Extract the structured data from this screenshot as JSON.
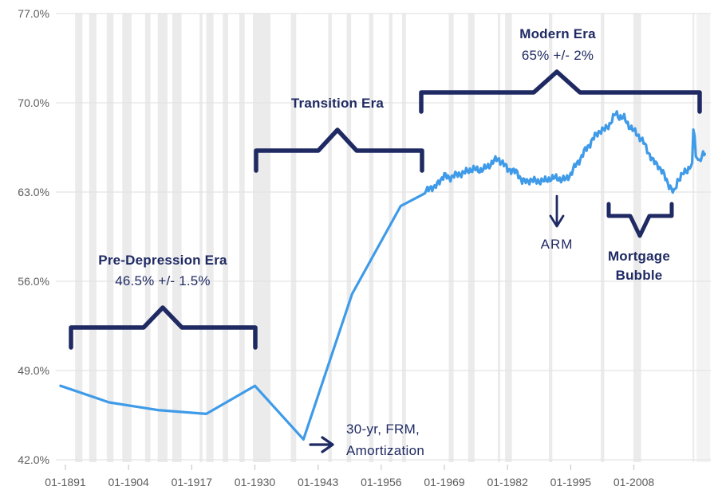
{
  "chart_data": {
    "type": "line",
    "x_axis": {
      "tick_labels": [
        "01-1891",
        "01-1904",
        "01-1917",
        "01-1930",
        "01-1943",
        "01-1956",
        "01-1969",
        "01-1982",
        "01-1995",
        "01-2008"
      ],
      "tick_years": [
        1891,
        1904,
        1917,
        1930,
        1943,
        1956,
        1969,
        1982,
        1995,
        2008
      ],
      "range_years": [
        1889,
        2023.7
      ]
    },
    "y_axis": {
      "tick_labels": [
        "42.0%",
        "49.0%",
        "56.0%",
        "63.0%",
        "70.0%",
        "77.0%"
      ],
      "tick_values": [
        42,
        49,
        56,
        63,
        70,
        77
      ],
      "range": [
        42,
        77
      ]
    },
    "series": [
      {
        "name": "homeownership-rate-census-era",
        "style": "smooth",
        "points": [
          [
            1890,
            47.8
          ],
          [
            1900,
            46.5
          ],
          [
            1910,
            45.9
          ],
          [
            1920,
            45.6
          ],
          [
            1930,
            47.8
          ],
          [
            1940,
            43.6
          ],
          [
            1950,
            55.0
          ],
          [
            1960,
            61.9
          ],
          [
            1965,
            62.9
          ]
        ]
      },
      {
        "name": "homeownership-rate-quarterly",
        "style": "noisy",
        "noise_amplitude": 0.22,
        "points": [
          [
            1965,
            62.9
          ],
          [
            1966,
            63.4
          ],
          [
            1967,
            63.3
          ],
          [
            1968,
            63.9
          ],
          [
            1969,
            64.3
          ],
          [
            1970,
            64.1
          ],
          [
            1971,
            64.3
          ],
          [
            1972,
            64.4
          ],
          [
            1973,
            64.5
          ],
          [
            1974,
            64.7
          ],
          [
            1975,
            64.8
          ],
          [
            1976,
            64.7
          ],
          [
            1977,
            64.8
          ],
          [
            1978,
            65.0
          ],
          [
            1979,
            65.4
          ],
          [
            1980,
            65.6
          ],
          [
            1981,
            65.3
          ],
          [
            1982,
            64.8
          ],
          [
            1983,
            64.7
          ],
          [
            1984,
            64.5
          ],
          [
            1985,
            63.9
          ],
          [
            1986,
            63.8
          ],
          [
            1987,
            64.0
          ],
          [
            1988,
            63.8
          ],
          [
            1989,
            63.9
          ],
          [
            1990,
            63.9
          ],
          [
            1991,
            64.1
          ],
          [
            1992,
            64.1
          ],
          [
            1993,
            64.0
          ],
          [
            1994,
            64.0
          ],
          [
            1995,
            64.4
          ],
          [
            1996,
            65.1
          ],
          [
            1997,
            65.6
          ],
          [
            1998,
            66.3
          ],
          [
            1999,
            66.8
          ],
          [
            2000,
            67.4
          ],
          [
            2001,
            67.8
          ],
          [
            2002,
            67.9
          ],
          [
            2003,
            68.3
          ],
          [
            2004.3,
            69.2
          ],
          [
            2005,
            68.9
          ],
          [
            2006,
            68.8
          ],
          [
            2007,
            68.2
          ],
          [
            2008,
            67.8
          ],
          [
            2009,
            67.4
          ],
          [
            2010,
            66.9
          ],
          [
            2011,
            66.1
          ],
          [
            2012,
            65.4
          ],
          [
            2013,
            65.1
          ],
          [
            2014,
            64.5
          ],
          [
            2015,
            63.7
          ],
          [
            2016.3,
            62.9
          ],
          [
            2017,
            63.9
          ],
          [
            2018,
            64.4
          ],
          [
            2019,
            64.7
          ],
          [
            2020.0,
            65.3
          ],
          [
            2020.25,
            67.9
          ],
          [
            2020.5,
            67.4
          ],
          [
            2020.75,
            65.8
          ],
          [
            2021.1,
            65.6
          ],
          [
            2021.5,
            65.4
          ],
          [
            2022,
            65.8
          ],
          [
            2022.6,
            66.0
          ]
        ]
      }
    ],
    "recession_bands": [
      [
        1893.0,
        1894.5
      ],
      [
        1895.9,
        1897.4
      ],
      [
        1899.5,
        1900.9
      ],
      [
        1902.7,
        1904.6
      ],
      [
        1907.4,
        1908.5
      ],
      [
        1910.0,
        1912.0
      ],
      [
        1913.0,
        1914.9
      ],
      [
        1918.6,
        1919.2
      ],
      [
        1920.0,
        1921.5
      ],
      [
        1923.4,
        1924.5
      ],
      [
        1926.8,
        1927.9
      ],
      [
        1929.6,
        1933.2
      ],
      [
        1937.4,
        1938.5
      ],
      [
        1945.1,
        1945.8
      ],
      [
        1948.9,
        1949.8
      ],
      [
        1953.5,
        1954.4
      ],
      [
        1957.6,
        1958.3
      ],
      [
        1960.3,
        1961.1
      ],
      [
        1969.9,
        1970.9
      ],
      [
        1973.9,
        1975.2
      ],
      [
        1980.0,
        1980.5
      ],
      [
        1981.5,
        1982.9
      ],
      [
        1990.5,
        1991.2
      ],
      [
        2001.2,
        2001.9
      ],
      [
        2007.9,
        2009.5
      ],
      [
        2020.1,
        2020.45
      ]
    ],
    "edge_band_years": [
      2020.9,
      2023.7
    ]
  },
  "annotations": {
    "pre_depression": {
      "title": "Pre-Depression Era",
      "value": "46.5% +/- 1.5%"
    },
    "transition": {
      "title": "Transition Era"
    },
    "modern": {
      "title": "Modern Era",
      "value": "65% +/- 2%"
    },
    "arm": {
      "label": "ARM"
    },
    "mortgage_bubble": {
      "line1": "Mortgage",
      "line2": "Bubble"
    },
    "origination": {
      "line1": "30-yr, FRM,",
      "line2": "Amortization"
    }
  },
  "colors": {
    "line": "#3f9be8",
    "annotation": "#1f2a63",
    "axis_text": "#5c5c5c",
    "gridline": "#e4e4e4",
    "recession_band": "#ebebeb",
    "edge_band": "#f3f3f3",
    "background": "#ffffff"
  }
}
